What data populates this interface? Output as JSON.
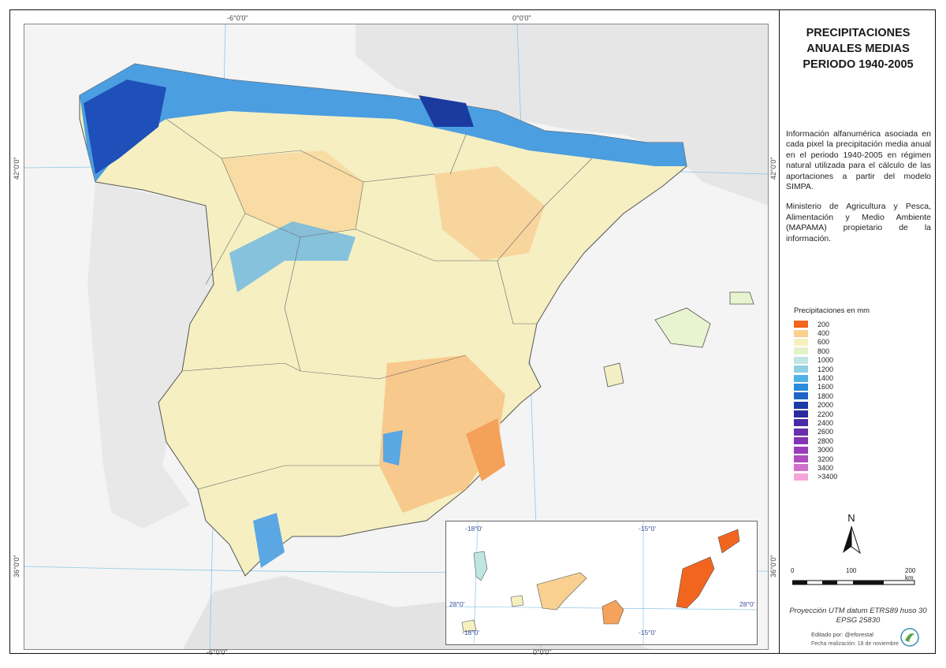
{
  "panel": {
    "title_lines": [
      "PRECIPITACIONES",
      "ANUALES MEDIAS",
      "PERIODO 1940-2005"
    ],
    "description_p1": "Información alfanumérica asociada en cada pixel la precipitación media anual en el periodo 1940-2005 en régimen natural utilizada para el cálculo de las aportaciones a partir del modelo SIMPA.",
    "description_p2": "Ministerio de Agricultura y Pesca, Alimentación y Medio Ambiente (MAPAMA) propietario de la información.",
    "legend_title": "Precipitaciones en mm",
    "legend": [
      {
        "label": "200",
        "color": "#f2651f"
      },
      {
        "label": "400",
        "color": "#f9d08f"
      },
      {
        "label": "600",
        "color": "#f6f0bf"
      },
      {
        "label": "800",
        "color": "#e3f3c7"
      },
      {
        "label": "1000",
        "color": "#bfe6e0"
      },
      {
        "label": "1200",
        "color": "#8ed0e4"
      },
      {
        "label": "1400",
        "color": "#4fb2e6"
      },
      {
        "label": "1600",
        "color": "#2a8cdb"
      },
      {
        "label": "1800",
        "color": "#1f63c7"
      },
      {
        "label": "2000",
        "color": "#1c3aa8"
      },
      {
        "label": "2200",
        "color": "#2a2a9e"
      },
      {
        "label": "2400",
        "color": "#4a2aa5"
      },
      {
        "label": "2600",
        "color": "#6a2eae"
      },
      {
        "label": "2800",
        "color": "#8233b6"
      },
      {
        "label": "3000",
        "color": "#9a3cbc"
      },
      {
        "label": "3200",
        "color": "#b04cbf"
      },
      {
        "label": "3400",
        "color": "#d070c8"
      },
      {
        "label": ">3400",
        "color": "#f4a6d8"
      }
    ],
    "north_label": "N",
    "scale_labels": [
      "0",
      "100",
      "200 km"
    ],
    "projection_line1": "Proyección UTM datum ETRS89 huso 30",
    "projection_line2": "EPSG 25830",
    "edited_by": "Editado por: @eforestal",
    "date": "Fecha realización: 18 de noviembre"
  },
  "map": {
    "coord_top_1": "-6°0'0\"",
    "coord_top_2": "0°0'0\"",
    "coord_bottom_1": "-6°0'0\"",
    "coord_bottom_2": "0°0'0\"",
    "coord_left_1": "42°0'0\"",
    "coord_left_2": "36°0'0\"",
    "coord_right_1": "42°0'0\"",
    "coord_right_2": "36°0'0\""
  },
  "inset": {
    "coord_top_1": "-18°0'",
    "coord_top_2": "-15°0'",
    "coord_bottom_1": "-18°0'",
    "coord_bottom_2": "-15°0'",
    "coord_left": "28°0'",
    "coord_right": "28°0'"
  }
}
